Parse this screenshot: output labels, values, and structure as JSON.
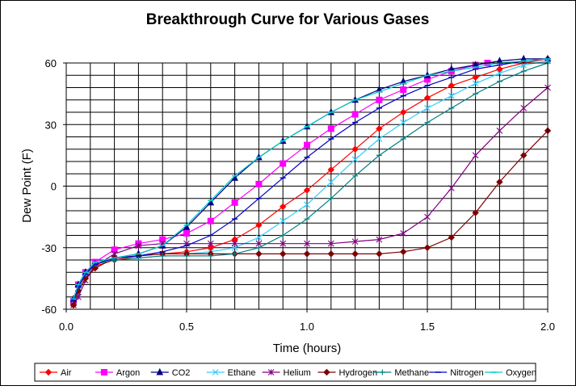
{
  "chart_data": {
    "type": "line",
    "title": "Breakthrough Curve for Various Gases",
    "xlabel": "Time (hours)",
    "ylabel": "Dew Point (F)",
    "xlim": [
      0.0,
      2.0
    ],
    "ylim": [
      -60,
      60
    ],
    "x_ticks": [
      "0.0",
      "0.5",
      "1.0",
      "1.5",
      "2.0"
    ],
    "y_ticks": [
      "60",
      "30",
      "0",
      "-30",
      "-60"
    ],
    "grid": "horizontal every 6 F, vertical every 0.1 h",
    "legend_position": "bottom",
    "series": [
      {
        "name": "Air",
        "color": "#ff0000",
        "marker": "diamond",
        "points": [
          [
            0.03,
            -58
          ],
          [
            0.05,
            -49
          ],
          [
            0.08,
            -44
          ],
          [
            0.12,
            -39
          ],
          [
            0.2,
            -36
          ],
          [
            0.3,
            -34
          ],
          [
            0.4,
            -33
          ],
          [
            0.5,
            -32
          ],
          [
            0.6,
            -30
          ],
          [
            0.7,
            -26
          ],
          [
            0.8,
            -19
          ],
          [
            0.9,
            -10
          ],
          [
            1.0,
            -2
          ],
          [
            1.1,
            8
          ],
          [
            1.2,
            18
          ],
          [
            1.3,
            28
          ],
          [
            1.4,
            36
          ],
          [
            1.5,
            43
          ],
          [
            1.6,
            49
          ],
          [
            1.7,
            53
          ],
          [
            1.8,
            57
          ],
          [
            1.9,
            60
          ],
          [
            2.0,
            62
          ]
        ]
      },
      {
        "name": "Argon",
        "color": "#ff00ff",
        "marker": "square",
        "points": [
          [
            0.03,
            -56
          ],
          [
            0.05,
            -48
          ],
          [
            0.08,
            -42
          ],
          [
            0.12,
            -37
          ],
          [
            0.2,
            -31
          ],
          [
            0.3,
            -28
          ],
          [
            0.4,
            -26
          ],
          [
            0.5,
            -23
          ],
          [
            0.6,
            -17
          ],
          [
            0.7,
            -8
          ],
          [
            0.8,
            1
          ],
          [
            0.9,
            11
          ],
          [
            1.0,
            20
          ],
          [
            1.1,
            28
          ],
          [
            1.2,
            35
          ],
          [
            1.3,
            42
          ],
          [
            1.4,
            47
          ],
          [
            1.5,
            52
          ],
          [
            1.6,
            56
          ],
          [
            1.7,
            59
          ],
          [
            1.75,
            60
          ]
        ]
      },
      {
        "name": "CO2",
        "color": "#000080",
        "marker": "triangle",
        "points": [
          [
            0.03,
            -55
          ],
          [
            0.05,
            -48
          ],
          [
            0.08,
            -42
          ],
          [
            0.12,
            -38
          ],
          [
            0.2,
            -35
          ],
          [
            0.3,
            -33
          ],
          [
            0.4,
            -29
          ],
          [
            0.5,
            -20
          ],
          [
            0.6,
            -8
          ],
          [
            0.7,
            4
          ],
          [
            0.8,
            14
          ],
          [
            0.9,
            22
          ],
          [
            1.0,
            29
          ],
          [
            1.1,
            36
          ],
          [
            1.2,
            42
          ],
          [
            1.3,
            47
          ],
          [
            1.4,
            51
          ],
          [
            1.5,
            54
          ],
          [
            1.6,
            57
          ],
          [
            1.7,
            59
          ],
          [
            1.8,
            61
          ],
          [
            1.9,
            62
          ],
          [
            2.0,
            62
          ]
        ]
      },
      {
        "name": "Ethane",
        "color": "#33ccff",
        "marker": "x",
        "points": [
          [
            0.03,
            -57
          ],
          [
            0.05,
            -52
          ],
          [
            0.08,
            -44
          ],
          [
            0.12,
            -38
          ],
          [
            0.2,
            -35
          ],
          [
            0.3,
            -34
          ],
          [
            0.4,
            -33
          ],
          [
            0.5,
            -33
          ],
          [
            0.6,
            -32
          ],
          [
            0.7,
            -30
          ],
          [
            0.8,
            -25
          ],
          [
            0.9,
            -17
          ],
          [
            1.0,
            -9
          ],
          [
            1.1,
            2
          ],
          [
            1.2,
            13
          ],
          [
            1.3,
            23
          ],
          [
            1.4,
            31
          ],
          [
            1.5,
            38
          ],
          [
            1.6,
            44
          ],
          [
            1.7,
            50
          ],
          [
            1.8,
            55
          ],
          [
            1.9,
            59
          ],
          [
            2.0,
            61
          ]
        ]
      },
      {
        "name": "Helium",
        "color": "#800080",
        "marker": "star",
        "points": [
          [
            0.03,
            -58
          ],
          [
            0.05,
            -54
          ],
          [
            0.08,
            -46
          ],
          [
            0.12,
            -39
          ],
          [
            0.2,
            -33
          ],
          [
            0.3,
            -29
          ],
          [
            0.4,
            -28
          ],
          [
            0.5,
            -28
          ],
          [
            0.6,
            -28
          ],
          [
            0.7,
            -28
          ],
          [
            0.8,
            -28
          ],
          [
            0.9,
            -28
          ],
          [
            1.0,
            -28
          ],
          [
            1.1,
            -28
          ],
          [
            1.2,
            -27
          ],
          [
            1.3,
            -26
          ],
          [
            1.4,
            -23
          ],
          [
            1.5,
            -15
          ],
          [
            1.6,
            -1
          ],
          [
            1.7,
            15
          ],
          [
            1.8,
            27
          ],
          [
            1.9,
            38
          ],
          [
            2.0,
            48
          ]
        ]
      },
      {
        "name": "Hydrogen",
        "color": "#800000",
        "marker": "diamond",
        "points": [
          [
            0.03,
            -58
          ],
          [
            0.05,
            -51
          ],
          [
            0.08,
            -45
          ],
          [
            0.12,
            -40
          ],
          [
            0.2,
            -35
          ],
          [
            0.3,
            -34
          ],
          [
            0.4,
            -33
          ],
          [
            0.5,
            -33
          ],
          [
            0.6,
            -33
          ],
          [
            0.7,
            -33
          ],
          [
            0.8,
            -33
          ],
          [
            0.9,
            -33
          ],
          [
            1.0,
            -33
          ],
          [
            1.1,
            -33
          ],
          [
            1.2,
            -33
          ],
          [
            1.3,
            -33
          ],
          [
            1.4,
            -32
          ],
          [
            1.5,
            -30
          ],
          [
            1.6,
            -25
          ],
          [
            1.7,
            -13
          ],
          [
            1.8,
            2
          ],
          [
            1.9,
            15
          ],
          [
            2.0,
            27
          ]
        ]
      },
      {
        "name": "Methane",
        "color": "#008080",
        "marker": "plus",
        "points": [
          [
            0.03,
            -55
          ],
          [
            0.05,
            -49
          ],
          [
            0.08,
            -43
          ],
          [
            0.12,
            -38
          ],
          [
            0.2,
            -36
          ],
          [
            0.3,
            -35
          ],
          [
            0.4,
            -34
          ],
          [
            0.5,
            -34
          ],
          [
            0.6,
            -34
          ],
          [
            0.7,
            -33
          ],
          [
            0.8,
            -30
          ],
          [
            0.9,
            -24
          ],
          [
            1.0,
            -16
          ],
          [
            1.1,
            -6
          ],
          [
            1.2,
            5
          ],
          [
            1.3,
            15
          ],
          [
            1.4,
            23
          ],
          [
            1.5,
            31
          ],
          [
            1.6,
            38
          ],
          [
            1.7,
            45
          ],
          [
            1.8,
            51
          ],
          [
            1.9,
            56
          ],
          [
            2.0,
            60
          ]
        ]
      },
      {
        "name": "Nitrogen",
        "color": "#0000cc",
        "marker": "dash",
        "points": [
          [
            0.03,
            -56
          ],
          [
            0.05,
            -49
          ],
          [
            0.08,
            -43
          ],
          [
            0.12,
            -38
          ],
          [
            0.2,
            -35
          ],
          [
            0.3,
            -34
          ],
          [
            0.4,
            -32
          ],
          [
            0.5,
            -29
          ],
          [
            0.6,
            -24
          ],
          [
            0.7,
            -16
          ],
          [
            0.8,
            -6
          ],
          [
            0.9,
            4
          ],
          [
            1.0,
            14
          ],
          [
            1.1,
            23
          ],
          [
            1.2,
            31
          ],
          [
            1.3,
            38
          ],
          [
            1.4,
            44
          ],
          [
            1.5,
            49
          ],
          [
            1.6,
            53
          ],
          [
            1.7,
            57
          ],
          [
            1.8,
            59
          ],
          [
            1.9,
            61
          ],
          [
            2.0,
            62
          ]
        ]
      },
      {
        "name": "Oxygen",
        "color": "#00cccc",
        "marker": "dash",
        "points": [
          [
            0.03,
            -55
          ],
          [
            0.05,
            -48
          ],
          [
            0.08,
            -42
          ],
          [
            0.12,
            -37
          ],
          [
            0.2,
            -35
          ],
          [
            0.3,
            -33
          ],
          [
            0.4,
            -29
          ],
          [
            0.5,
            -19
          ],
          [
            0.6,
            -7
          ],
          [
            0.7,
            5
          ],
          [
            0.8,
            14
          ],
          [
            0.9,
            22
          ],
          [
            1.0,
            29
          ],
          [
            1.1,
            36
          ],
          [
            1.2,
            42
          ],
          [
            1.3,
            46
          ],
          [
            1.4,
            50
          ],
          [
            1.5,
            54
          ],
          [
            1.6,
            56
          ],
          [
            1.7,
            58
          ],
          [
            1.8,
            60
          ],
          [
            1.9,
            61
          ],
          [
            2.0,
            62
          ]
        ]
      }
    ]
  }
}
